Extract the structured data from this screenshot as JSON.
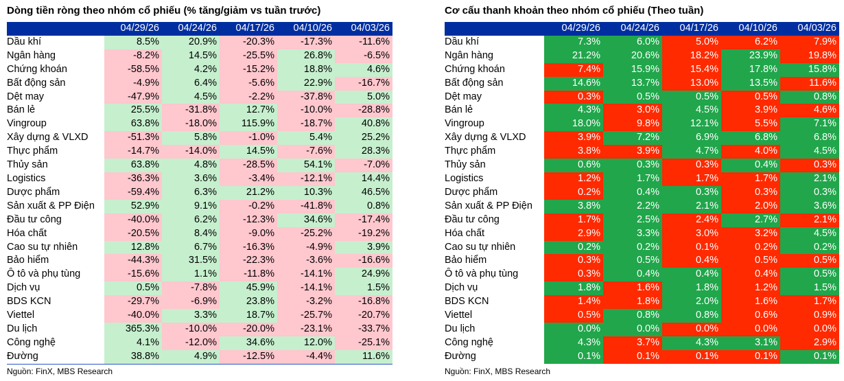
{
  "chart_data": [
    {
      "type": "table",
      "title": "Dòng tiền ròng theo nhóm cổ phiếu (% tăng/giảm vs tuần trước)",
      "columns": [
        "04/29/26",
        "04/24/26",
        "04/17/26",
        "04/10/26",
        "04/03/26"
      ],
      "rows": [
        {
          "label": "Dầu khí",
          "values": [
            "8.5%",
            "20.9%",
            "-20.3%",
            "-17.3%",
            "-11.6%"
          ]
        },
        {
          "label": "Ngân hàng",
          "values": [
            "-8.2%",
            "14.5%",
            "-25.5%",
            "26.8%",
            "-6.5%"
          ]
        },
        {
          "label": "Chứng khoán",
          "values": [
            "-58.5%",
            "4.2%",
            "-15.2%",
            "18.8%",
            "4.6%"
          ]
        },
        {
          "label": "Bất động sản",
          "values": [
            "-4.9%",
            "6.4%",
            "-5.6%",
            "22.9%",
            "-16.7%"
          ]
        },
        {
          "label": "Dệt may",
          "values": [
            "-47.9%",
            "4.5%",
            "-2.2%",
            "-37.8%",
            "5.0%"
          ]
        },
        {
          "label": "Bán lẻ",
          "values": [
            "25.5%",
            "-31.8%",
            "12.7%",
            "-10.0%",
            "-28.8%"
          ]
        },
        {
          "label": "Vingroup",
          "values": [
            "63.8%",
            "-18.0%",
            "115.9%",
            "-18.7%",
            "40.8%"
          ]
        },
        {
          "label": "Xây dựng & VLXD",
          "values": [
            "-51.3%",
            "5.8%",
            "-1.0%",
            "5.4%",
            "25.2%"
          ]
        },
        {
          "label": "Thực phẩm",
          "values": [
            "-14.7%",
            "-14.0%",
            "14.5%",
            "-7.6%",
            "28.3%"
          ]
        },
        {
          "label": "Thủy sản",
          "values": [
            "63.8%",
            "4.8%",
            "-28.5%",
            "54.1%",
            "-7.0%"
          ]
        },
        {
          "label": "Logistics",
          "values": [
            "-36.3%",
            "3.6%",
            "-3.4%",
            "-12.1%",
            "14.4%"
          ]
        },
        {
          "label": "Dược phẩm",
          "values": [
            "-59.4%",
            "6.3%",
            "21.2%",
            "10.3%",
            "46.5%"
          ]
        },
        {
          "label": "Sản xuất & PP Điện",
          "values": [
            "52.9%",
            "9.1%",
            "-0.2%",
            "-41.8%",
            "0.8%"
          ]
        },
        {
          "label": "Đầu tư công",
          "values": [
            "-40.0%",
            "6.2%",
            "-12.3%",
            "34.6%",
            "-17.4%"
          ]
        },
        {
          "label": "Hóa chất",
          "values": [
            "-20.5%",
            "8.4%",
            "-9.0%",
            "-25.2%",
            "-19.2%"
          ]
        },
        {
          "label": "Cao su tự nhiên",
          "values": [
            "12.8%",
            "6.7%",
            "-16.3%",
            "-4.9%",
            "3.9%"
          ]
        },
        {
          "label": "Bảo hiểm",
          "values": [
            "-44.3%",
            "31.5%",
            "-22.3%",
            "-3.6%",
            "-16.6%"
          ]
        },
        {
          "label": "Ô tô và phụ tùng",
          "values": [
            "-15.6%",
            "1.1%",
            "-11.8%",
            "-14.1%",
            "24.9%"
          ]
        },
        {
          "label": "Dịch vụ",
          "values": [
            "0.5%",
            "-7.8%",
            "45.9%",
            "-14.1%",
            "1.5%"
          ]
        },
        {
          "label": "BDS KCN",
          "values": [
            "-29.7%",
            "-6.9%",
            "23.8%",
            "-3.2%",
            "-16.8%"
          ]
        },
        {
          "label": "Viettel",
          "values": [
            "-40.0%",
            "3.3%",
            "18.7%",
            "-25.7%",
            "-20.7%"
          ]
        },
        {
          "label": "Du lịch",
          "values": [
            "365.3%",
            "-10.0%",
            "-20.0%",
            "-23.1%",
            "-33.7%"
          ]
        },
        {
          "label": "Công nghệ",
          "values": [
            "4.1%",
            "-12.0%",
            "34.6%",
            "12.0%",
            "-25.1%"
          ]
        },
        {
          "label": "Đường",
          "values": [
            "38.8%",
            "4.9%",
            "-12.5%",
            "-4.4%",
            "11.6%"
          ]
        }
      ],
      "colors": {
        "positive": "#c6efce",
        "negative": "#ffc7ce",
        "header": "#002ea0"
      },
      "source": "Nguồn: FinX, MBS Research"
    },
    {
      "type": "table",
      "title": "Cơ cấu thanh khoản theo nhóm cổ phiếu (Theo tuần)",
      "columns": [
        "04/29/26",
        "04/24/26",
        "04/17/26",
        "04/10/26",
        "04/03/26"
      ],
      "rows": [
        {
          "label": "Dầu khí",
          "values": [
            "7.3%",
            "6.0%",
            "5.0%",
            "6.2%",
            "7.9%"
          ],
          "colors": [
            "g",
            "g",
            "r",
            "r",
            "r"
          ]
        },
        {
          "label": "Ngân hàng",
          "values": [
            "21.2%",
            "20.6%",
            "18.2%",
            "23.9%",
            "19.8%"
          ],
          "colors": [
            "g",
            "g",
            "r",
            "g",
            "r"
          ]
        },
        {
          "label": "Chứng khoán",
          "values": [
            "7.4%",
            "15.9%",
            "15.4%",
            "17.8%",
            "15.8%"
          ],
          "colors": [
            "r",
            "g",
            "r",
            "g",
            "g"
          ]
        },
        {
          "label": "Bất động sản",
          "values": [
            "14.6%",
            "13.7%",
            "13.0%",
            "13.5%",
            "11.6%"
          ],
          "colors": [
            "g",
            "g",
            "r",
            "g",
            "r"
          ]
        },
        {
          "label": "Dệt may",
          "values": [
            "0.3%",
            "0.5%",
            "0.5%",
            "0.5%",
            "0.8%"
          ],
          "colors": [
            "r",
            "g",
            "g",
            "r",
            "g"
          ]
        },
        {
          "label": "Bán lẻ",
          "values": [
            "4.3%",
            "3.0%",
            "4.5%",
            "3.9%",
            "4.6%"
          ],
          "colors": [
            "g",
            "r",
            "g",
            "r",
            "r"
          ]
        },
        {
          "label": "Vingroup",
          "values": [
            "18.0%",
            "9.8%",
            "12.1%",
            "5.5%",
            "7.1%"
          ],
          "colors": [
            "g",
            "r",
            "g",
            "r",
            "g"
          ]
        },
        {
          "label": "Xây dựng & VLXD",
          "values": [
            "3.9%",
            "7.2%",
            "6.9%",
            "6.8%",
            "6.8%"
          ],
          "colors": [
            "r",
            "g",
            "g",
            "g",
            "g"
          ]
        },
        {
          "label": "Thực phẩm",
          "values": [
            "3.8%",
            "3.9%",
            "4.7%",
            "4.0%",
            "4.5%"
          ],
          "colors": [
            "r",
            "r",
            "g",
            "r",
            "g"
          ]
        },
        {
          "label": "Thủy sản",
          "values": [
            "0.6%",
            "0.3%",
            "0.3%",
            "0.4%",
            "0.3%"
          ],
          "colors": [
            "g",
            "g",
            "r",
            "g",
            "r"
          ]
        },
        {
          "label": "Logistics",
          "values": [
            "1.2%",
            "1.7%",
            "1.7%",
            "1.7%",
            "2.1%"
          ],
          "colors": [
            "r",
            "g",
            "r",
            "r",
            "g"
          ]
        },
        {
          "label": "Dược phẩm",
          "values": [
            "0.2%",
            "0.4%",
            "0.3%",
            "0.3%",
            "0.3%"
          ],
          "colors": [
            "r",
            "g",
            "g",
            "r",
            "g"
          ]
        },
        {
          "label": "Sản xuất & PP Điện",
          "values": [
            "3.8%",
            "2.2%",
            "2.1%",
            "2.0%",
            "3.6%"
          ],
          "colors": [
            "g",
            "g",
            "g",
            "r",
            "g"
          ]
        },
        {
          "label": "Đầu tư công",
          "values": [
            "1.7%",
            "2.5%",
            "2.4%",
            "2.7%",
            "2.1%"
          ],
          "colors": [
            "r",
            "g",
            "r",
            "g",
            "r"
          ]
        },
        {
          "label": "Hóa chất",
          "values": [
            "2.9%",
            "3.3%",
            "3.0%",
            "3.2%",
            "4.5%"
          ],
          "colors": [
            "r",
            "g",
            "r",
            "r",
            "g"
          ]
        },
        {
          "label": "Cao su tự nhiên",
          "values": [
            "0.2%",
            "0.2%",
            "0.1%",
            "0.2%",
            "0.2%"
          ],
          "colors": [
            "g",
            "g",
            "r",
            "r",
            "g"
          ]
        },
        {
          "label": "Bảo hiểm",
          "values": [
            "0.3%",
            "0.5%",
            "0.4%",
            "0.5%",
            "0.5%"
          ],
          "colors": [
            "r",
            "g",
            "r",
            "r",
            "r"
          ]
        },
        {
          "label": "Ô tô và phụ tùng",
          "values": [
            "0.3%",
            "0.4%",
            "0.4%",
            "0.4%",
            "0.5%"
          ],
          "colors": [
            "r",
            "g",
            "g",
            "r",
            "g"
          ]
        },
        {
          "label": "Dịch vụ",
          "values": [
            "1.8%",
            "1.6%",
            "1.8%",
            "1.2%",
            "1.5%"
          ],
          "colors": [
            "g",
            "r",
            "g",
            "r",
            "g"
          ]
        },
        {
          "label": "BDS KCN",
          "values": [
            "1.4%",
            "1.8%",
            "2.0%",
            "1.6%",
            "1.7%"
          ],
          "colors": [
            "r",
            "r",
            "g",
            "r",
            "r"
          ]
        },
        {
          "label": "Viettel",
          "values": [
            "0.5%",
            "0.8%",
            "0.8%",
            "0.6%",
            "0.9%"
          ],
          "colors": [
            "r",
            "g",
            "g",
            "r",
            "r"
          ]
        },
        {
          "label": "Du lịch",
          "values": [
            "0.0%",
            "0.0%",
            "0.0%",
            "0.0%",
            "0.0%"
          ],
          "colors": [
            "g",
            "g",
            "r",
            "r",
            "r"
          ]
        },
        {
          "label": "Công nghệ",
          "values": [
            "4.3%",
            "3.7%",
            "4.3%",
            "3.1%",
            "2.9%"
          ],
          "colors": [
            "g",
            "r",
            "g",
            "g",
            "r"
          ]
        },
        {
          "label": "Đường",
          "values": [
            "0.1%",
            "0.1%",
            "0.1%",
            "0.1%",
            "0.1%"
          ],
          "colors": [
            "g",
            "r",
            "r",
            "r",
            "g"
          ]
        }
      ],
      "colors": {
        "green": "#21a64b",
        "red": "#ff2a00",
        "header": "#002ea0"
      },
      "source": "Nguồn: FinX, MBS Research"
    }
  ]
}
